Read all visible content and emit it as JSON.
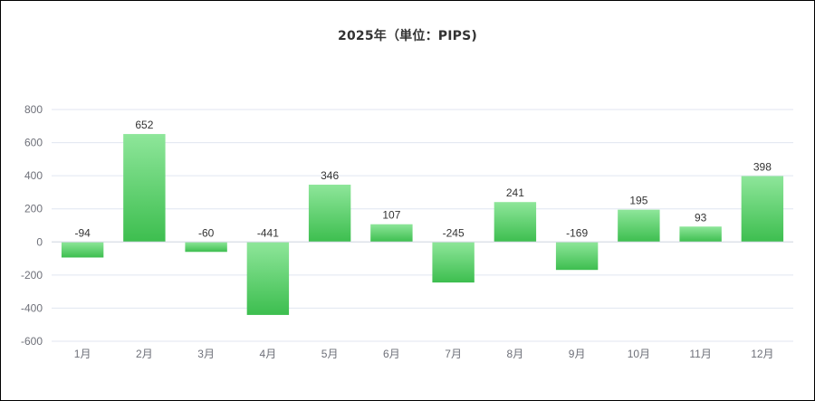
{
  "chart_data": {
    "type": "bar",
    "title": "2025年（単位：PIPS)",
    "xlabel": "",
    "ylabel": "",
    "categories": [
      "1月",
      "2月",
      "3月",
      "4月",
      "5月",
      "6月",
      "7月",
      "8月",
      "9月",
      "10月",
      "11月",
      "12月"
    ],
    "values": [
      -94,
      652,
      -60,
      -441,
      346,
      107,
      -245,
      241,
      -169,
      195,
      93,
      398
    ],
    "ylim": [
      -600,
      800
    ],
    "yticks": [
      -600,
      -400,
      -200,
      0,
      200,
      400,
      600,
      800
    ],
    "grid": true,
    "legend": "none",
    "colors": {
      "bar_top": "#8ee69a",
      "bar_bottom": "#3dbe4f",
      "grid": "#e0e6f1",
      "axis": "#6e7079"
    }
  }
}
